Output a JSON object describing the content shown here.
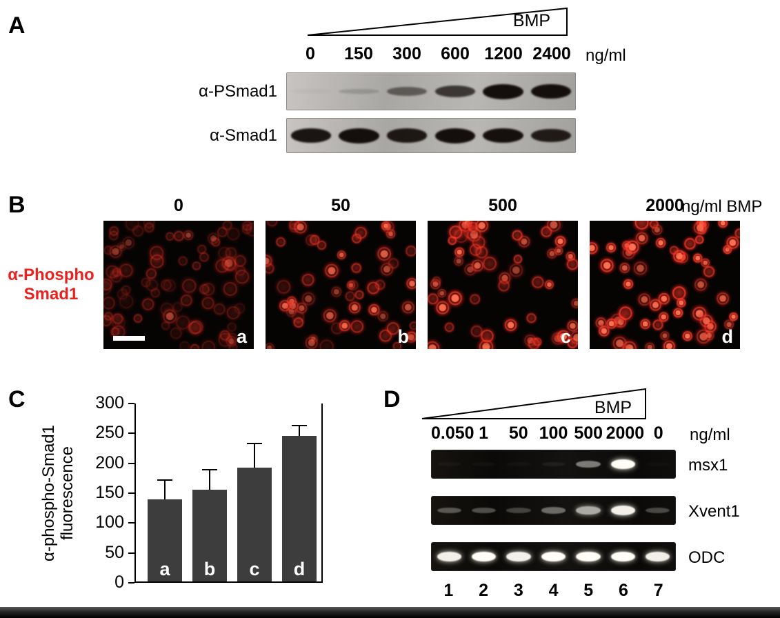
{
  "colors": {
    "red_label": "#e8231f",
    "bar_fill": "#3d3d3d"
  },
  "panel_a": {
    "label": "A",
    "wedge_label": "BMP",
    "units": "ng/ml",
    "concentrations": [
      "0",
      "150",
      "300",
      "600",
      "1200",
      "2400"
    ],
    "blots": [
      {
        "antibody": "α-PSmad1",
        "band_intensities": [
          0.04,
          0.16,
          0.5,
          0.72,
          1.0,
          0.97
        ]
      },
      {
        "antibody": "α-Smad1",
        "band_intensities": [
          0.92,
          1.0,
          0.9,
          1.0,
          0.95,
          0.88
        ]
      }
    ]
  },
  "panel_b": {
    "label": "B",
    "row_label": [
      "α-Phospho",
      "Smad1"
    ],
    "units": "ng/ml BMP",
    "micrographs": [
      {
        "concentration": "0",
        "letter": "a"
      },
      {
        "concentration": "50",
        "letter": "b"
      },
      {
        "concentration": "500",
        "letter": "c"
      },
      {
        "concentration": "2000",
        "letter": "d"
      }
    ]
  },
  "panel_c": {
    "label": "C"
  },
  "chart_data": {
    "type": "bar",
    "categories": [
      "a",
      "b",
      "c",
      "d"
    ],
    "values": [
      137,
      153,
      190,
      243
    ],
    "errors_upper": [
      32,
      33,
      40,
      17
    ],
    "ylabel_lines": [
      "α-phospho-Smad1",
      "fluorescence"
    ],
    "ylim": [
      0,
      300
    ],
    "yticks": [
      0,
      50,
      100,
      150,
      200,
      250,
      300
    ],
    "bar_color": "#3d3d3d"
  },
  "panel_d": {
    "label": "D",
    "wedge_label": "BMP",
    "units": "ng/ml",
    "concentrations": [
      "0.050",
      "1",
      "50",
      "100",
      "500",
      "2000",
      "0"
    ],
    "lane_numbers": [
      "1",
      "2",
      "3",
      "4",
      "5",
      "6",
      "7"
    ],
    "gels": [
      {
        "gene": "msx1",
        "band_intensities": [
          0.03,
          0.03,
          0.03,
          0.06,
          0.45,
          1.0,
          0.02
        ]
      },
      {
        "gene": "Xvent1",
        "band_intensities": [
          0.3,
          0.28,
          0.22,
          0.38,
          0.65,
          0.95,
          0.25
        ]
      },
      {
        "gene": "ODC",
        "band_intensities": [
          0.95,
          1.0,
          0.95,
          1.0,
          1.0,
          1.0,
          0.95
        ]
      }
    ]
  }
}
